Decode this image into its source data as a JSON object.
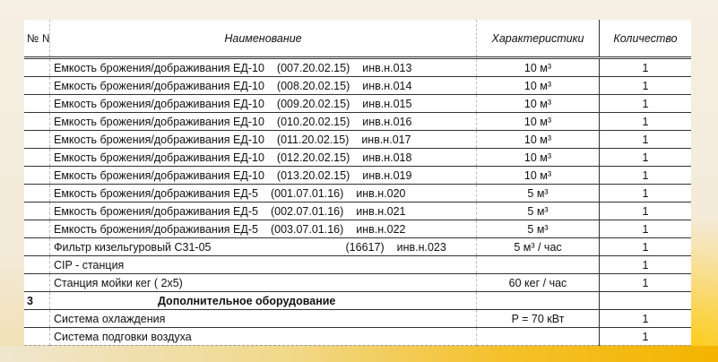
{
  "header": {
    "num": "№ №",
    "name": "Наименование",
    "characteristics": "Характеристики",
    "quantity": "Количество"
  },
  "rows": [
    {
      "num": "",
      "name": "Емкость брожения/дображивания ЕД-10",
      "code": "(007.20.02.15)",
      "inv": "инв.н.013",
      "char": "10 м³",
      "qty": "1"
    },
    {
      "num": "",
      "name": "Емкость брожения/дображивания ЕД-10",
      "code": "(008.20.02.15)",
      "inv": "инв.н.014",
      "char": "10 м³",
      "qty": "1"
    },
    {
      "num": "",
      "name": "Емкость брожения/дображивания ЕД-10",
      "code": "(009.20.02.15)",
      "inv": "инв.н.015",
      "char": "10 м³",
      "qty": "1"
    },
    {
      "num": "",
      "name": "Емкость брожения/дображивания ЕД-10",
      "code": "(010.20.02.15)",
      "inv": "инв.н.016",
      "char": "10 м³",
      "qty": "1"
    },
    {
      "num": "",
      "name": "Емкость брожения/дображивания ЕД-10",
      "code": "(011.20.02.15)",
      "inv": "инв.н.017",
      "char": "10 м³",
      "qty": "1"
    },
    {
      "num": "",
      "name": "Емкость брожения/дображивания ЕД-10",
      "code": "(012.20.02.15)",
      "inv": "инв.н.018",
      "char": "10 м³",
      "qty": "1"
    },
    {
      "num": "",
      "name": "Емкость брожения/дображивания ЕД-10",
      "code": "(013.20.02.15)",
      "inv": "инв.н.019",
      "char": "10 м³",
      "qty": "1"
    },
    {
      "num": "",
      "name": "Емкость брожения/дображивания ЕД-5",
      "code": "(001.07.01.16)",
      "inv": "инв.н.020",
      "char": "5 м³",
      "qty": "1"
    },
    {
      "num": "",
      "name": "Емкость брожения/дображивания ЕД-5",
      "code": "(002.07.01.16)",
      "inv": "инв.н.021",
      "char": "5 м³",
      "qty": "1"
    },
    {
      "num": "",
      "name": "Емкость брожения/дображивания ЕД-5",
      "code": "(003.07.01.16)",
      "inv": "инв.н.022",
      "char": "5 м³",
      "qty": "1"
    },
    {
      "num": "",
      "name": "Фильтр кизельгуровый С31-05",
      "code": "(16617)",
      "inv": "инв.н.023",
      "char": "5 м³ / час",
      "qty": "1"
    },
    {
      "num": "",
      "name": "CIP - станция",
      "code": "",
      "inv": "",
      "char": "",
      "qty": "1"
    },
    {
      "num": "",
      "name": "Станция мойки кег ( 2х5)",
      "code": "",
      "inv": "",
      "char": "60 кег / час",
      "qty": "1"
    },
    {
      "num": "3",
      "name": "Дополнительное оборудование",
      "code": "",
      "inv": "",
      "char": "",
      "qty": "",
      "section": true
    },
    {
      "num": "",
      "name": "Система охлаждения",
      "code": "",
      "inv": "",
      "char": "P = 70 кВт",
      "qty": "1"
    },
    {
      "num": "",
      "name": "Система подговки воздуха",
      "code": "",
      "inv": "",
      "char": "",
      "qty": "1"
    }
  ]
}
